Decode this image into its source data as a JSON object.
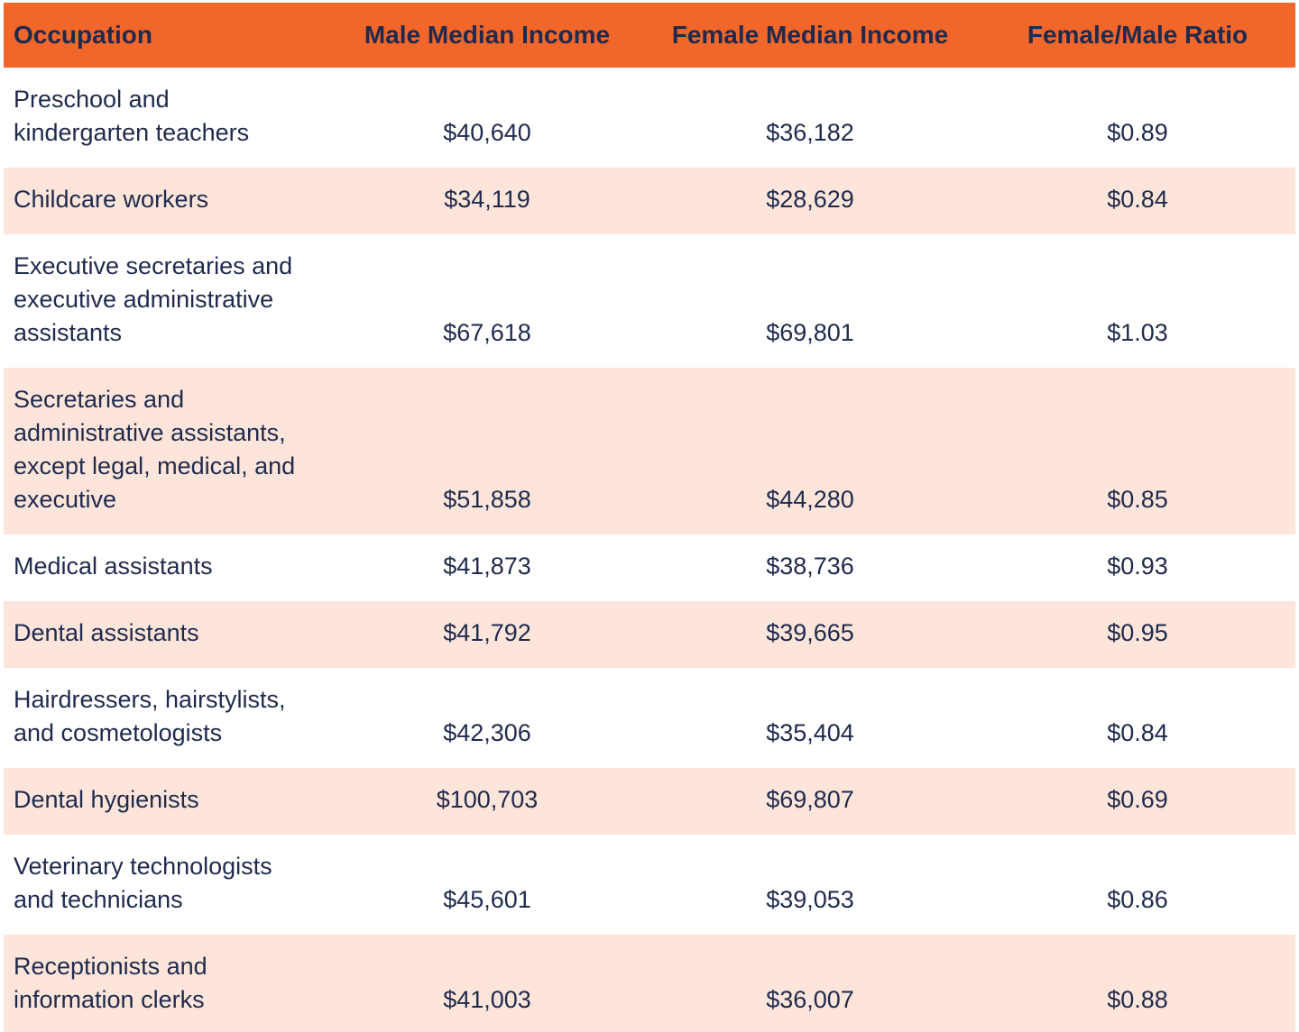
{
  "chart_data": {
    "type": "table",
    "title": "",
    "columns": [
      "Occupation",
      "Male Median Income",
      "Female Median Income",
      "Female/Male Ratio"
    ],
    "rows": [
      {
        "occupation": "Preschool and\nkindergarten teachers",
        "male": "$40,640",
        "female": "$36,182",
        "ratio": "$0.89"
      },
      {
        "occupation": "Childcare workers",
        "male": "$34,119",
        "female": "$28,629",
        "ratio": "$0.84"
      },
      {
        "occupation": "Executive secretaries and\nexecutive administrative\nassistants",
        "male": "$67,618",
        "female": "$69,801",
        "ratio": "$1.03"
      },
      {
        "occupation": "Secretaries and\nadministrative assistants,\nexcept legal, medical, and\nexecutive",
        "male": "$51,858",
        "female": "$44,280",
        "ratio": "$0.85"
      },
      {
        "occupation": "Medical assistants",
        "male": "$41,873",
        "female": "$38,736",
        "ratio": "$0.93"
      },
      {
        "occupation": "Dental assistants",
        "male": "$41,792",
        "female": "$39,665",
        "ratio": "$0.95"
      },
      {
        "occupation": "Hairdressers, hairstylists,\nand cosmetologists",
        "male": "$42,306",
        "female": "$35,404",
        "ratio": "$0.84"
      },
      {
        "occupation": "Dental hygienists",
        "male": "$100,703",
        "female": "$69,807",
        "ratio": "$0.69"
      },
      {
        "occupation": "Veterinary technologists\nand technicians",
        "male": "$45,601",
        "female": "$39,053",
        "ratio": "$0.86"
      },
      {
        "occupation": "Receptionists and\ninformation clerks",
        "male": "$41,003",
        "female": "$36,007",
        "ratio": "$0.88"
      }
    ],
    "layout": {
      "grid": false,
      "alternating_row_shading": true,
      "value_alignment": "bottom"
    }
  },
  "colors": {
    "header_background": "#F1662B",
    "alt_row_background": "#FDE5DB",
    "row_background": "#FFFFFF",
    "text": "#1F2A4C",
    "page_background": "#FFFFFF"
  }
}
